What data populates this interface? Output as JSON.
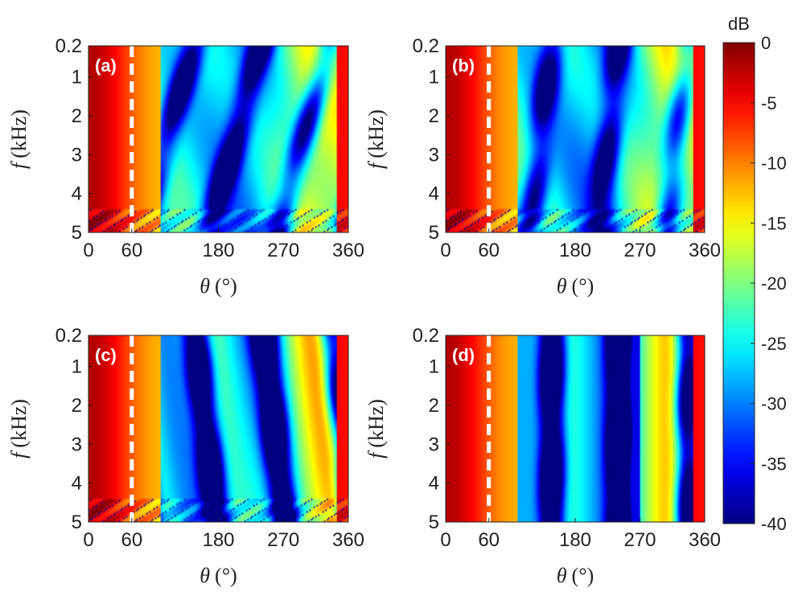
{
  "chart_data": {
    "type": "heatmap",
    "colormap": "jet",
    "colorbar": {
      "label": "dB",
      "range": [
        -40,
        0
      ],
      "ticks": [
        "0",
        "-5",
        "-10",
        "-15",
        "-20",
        "-25",
        "-30",
        "-35",
        "-40"
      ],
      "tick_values": [
        0,
        -5,
        -10,
        -15,
        -20,
        -25,
        -30,
        -35,
        -40
      ]
    },
    "panels": [
      {
        "label": "(a)",
        "xlabel_symbol": "θ",
        "xlabel_unit": "(°)",
        "ylabel_symbol": "f",
        "ylabel_unit": "(kHz)",
        "x_ticks": [
          "0",
          "60",
          "180",
          "270",
          "360"
        ],
        "x_tick_values": [
          0,
          60,
          180,
          270,
          360
        ],
        "y_ticks": [
          "0.2",
          "1",
          "2",
          "3",
          "4",
          "5"
        ],
        "y_tick_values": [
          0.2,
          1,
          2,
          3,
          4,
          5
        ],
        "xlim": [
          0,
          360
        ],
        "ylim": [
          0.2,
          5
        ],
        "y_reversed": true,
        "dashed_line_at": 60,
        "variant": 0
      },
      {
        "label": "(b)",
        "xlabel_symbol": "θ",
        "xlabel_unit": "(°)",
        "ylabel_symbol": "f",
        "ylabel_unit": "(kHz)",
        "x_ticks": [
          "0",
          "60",
          "180",
          "270",
          "360"
        ],
        "x_tick_values": [
          0,
          60,
          180,
          270,
          360
        ],
        "y_ticks": [
          "0.2",
          "1",
          "2",
          "3",
          "4",
          "5"
        ],
        "y_tick_values": [
          0.2,
          1,
          2,
          3,
          4,
          5
        ],
        "xlim": [
          0,
          360
        ],
        "ylim": [
          0.2,
          5
        ],
        "y_reversed": true,
        "dashed_line_at": 60,
        "variant": 1
      },
      {
        "label": "(c)",
        "xlabel_symbol": "θ",
        "xlabel_unit": "(°)",
        "ylabel_symbol": "f",
        "ylabel_unit": "(kHz)",
        "x_ticks": [
          "0",
          "60",
          "180",
          "270",
          "360"
        ],
        "x_tick_values": [
          0,
          60,
          180,
          270,
          360
        ],
        "y_ticks": [
          "0.2",
          "1",
          "2",
          "3",
          "4",
          "5"
        ],
        "y_tick_values": [
          0.2,
          1,
          2,
          3,
          4,
          5
        ],
        "xlim": [
          0,
          360
        ],
        "ylim": [
          0.2,
          5
        ],
        "y_reversed": true,
        "dashed_line_at": 60,
        "variant": 2
      },
      {
        "label": "(d)",
        "xlabel_symbol": "θ",
        "xlabel_unit": "(°)",
        "ylabel_symbol": "f",
        "ylabel_unit": "(kHz)",
        "x_ticks": [
          "0",
          "60",
          "180",
          "270",
          "360"
        ],
        "x_tick_values": [
          0,
          60,
          180,
          270,
          360
        ],
        "y_ticks": [
          "0.2",
          "1",
          "2",
          "3",
          "4",
          "5"
        ],
        "y_tick_values": [
          0.2,
          1,
          2,
          3,
          4,
          5
        ],
        "xlim": [
          0,
          360
        ],
        "ylim": [
          0.2,
          5
        ],
        "y_reversed": true,
        "dashed_line_at": 60,
        "variant": 3
      }
    ]
  }
}
